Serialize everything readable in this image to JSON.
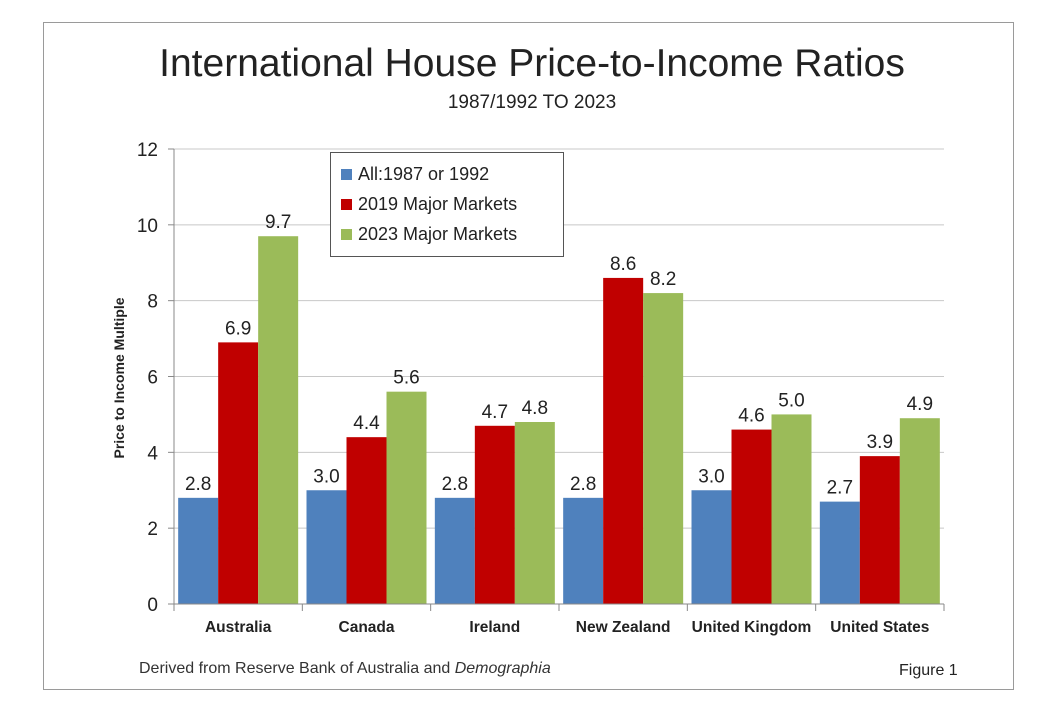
{
  "chart_data": {
    "type": "bar",
    "title": "International House Price-to-Income Ratios",
    "subtitle": "1987/1992 TO 2023",
    "ylabel": "Price to Income Multiple",
    "ylim": [
      0,
      12
    ],
    "yticks": [
      0,
      2,
      4,
      6,
      8,
      10,
      12
    ],
    "grid": true,
    "legend_position": "top-left",
    "categories": [
      "Australia",
      "Canada",
      "Ireland",
      "New Zealand",
      "United Kingdom",
      "United States"
    ],
    "series": [
      {
        "name": "All:1987 or 1992",
        "color": "#4f81bd",
        "values": [
          2.8,
          3.0,
          2.8,
          2.8,
          3.0,
          2.7
        ],
        "labels": [
          "2.8",
          "3.0",
          "2.8",
          "2.8",
          "3.0",
          "2.7"
        ]
      },
      {
        "name": "2019 Major Markets",
        "color": "#c00000",
        "values": [
          6.9,
          4.4,
          4.7,
          8.6,
          4.6,
          3.9
        ],
        "labels": [
          "6.9",
          "4.4",
          "4.7",
          "8.6",
          "4.6",
          "3.9"
        ]
      },
      {
        "name": "2023 Major Markets",
        "color": "#9bbb59",
        "values": [
          9.7,
          5.6,
          4.8,
          8.2,
          5.0,
          4.9
        ],
        "labels": [
          "9.7",
          "5.6",
          "4.8",
          "8.2",
          "5.0",
          "4.9"
        ]
      }
    ]
  },
  "footer": {
    "source_prefix": "Derived from Reserve Bank of Australia and ",
    "source_italic": "Demographia",
    "figure_label": "Figure 1"
  }
}
